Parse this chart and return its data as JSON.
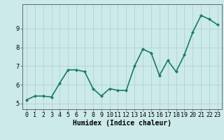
{
  "x": [
    0,
    1,
    2,
    3,
    4,
    5,
    6,
    7,
    8,
    9,
    10,
    11,
    12,
    13,
    14,
    15,
    16,
    17,
    18,
    19,
    20,
    21,
    22,
    23
  ],
  "y": [
    5.2,
    5.4,
    5.4,
    5.35,
    6.1,
    6.8,
    6.8,
    6.7,
    5.8,
    5.4,
    5.8,
    5.7,
    5.7,
    7.0,
    7.9,
    7.7,
    6.5,
    7.3,
    6.7,
    7.6,
    8.8,
    9.7,
    9.5,
    9.2
  ],
  "line_color": "#1a7a6a",
  "marker": "D",
  "marker_size": 2.2,
  "bg_color": "#cceaea",
  "grid_color": "#b0cccc",
  "xlabel": "Humidex (Indice chaleur)",
  "xlim": [
    -0.5,
    23.5
  ],
  "ylim": [
    4.7,
    10.3
  ],
  "yticks": [
    5,
    6,
    7,
    8,
    9
  ],
  "xtick_labels": [
    "0",
    "1",
    "2",
    "3",
    "4",
    "5",
    "6",
    "7",
    "8",
    "9",
    "10",
    "11",
    "12",
    "13",
    "14",
    "15",
    "16",
    "17",
    "18",
    "19",
    "20",
    "21",
    "22",
    "23"
  ],
  "xlabel_fontsize": 7,
  "tick_fontsize": 6,
  "linewidth": 1.2
}
